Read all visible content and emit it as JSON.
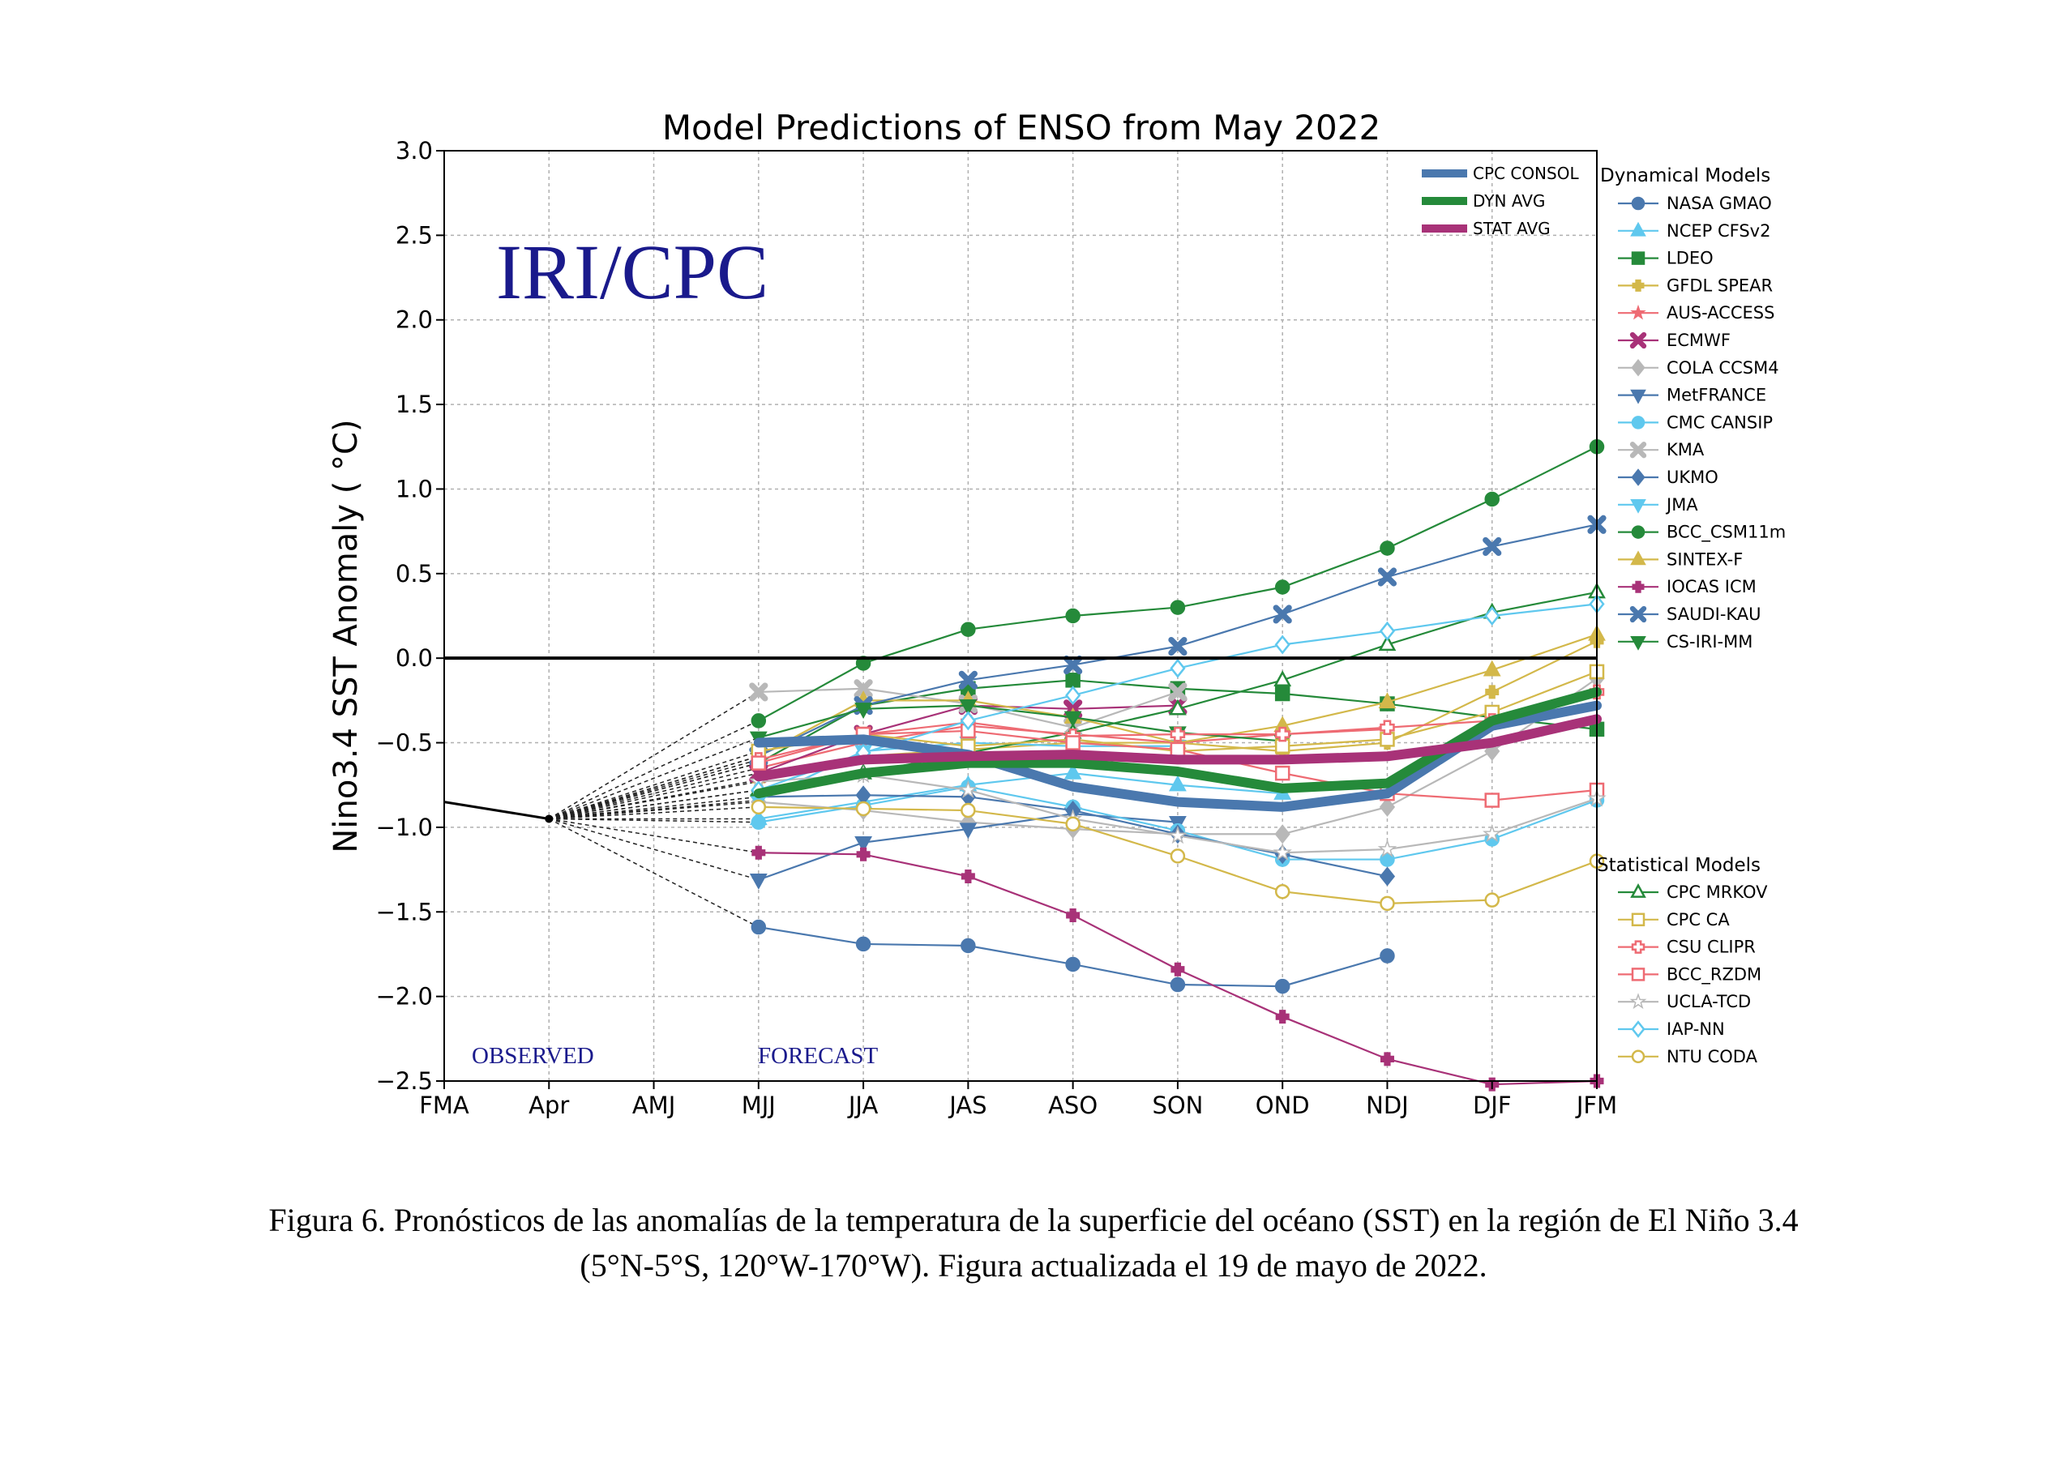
{
  "chart_data": {
    "type": "line",
    "title": "Model Predictions of ENSO from May 2022",
    "ylabel": "Nino3.4 SST Anomaly ( °C)",
    "xlabel": "",
    "categories": [
      "FMA",
      "Apr",
      "AMJ",
      "MJJ",
      "JJA",
      "JAS",
      "ASO",
      "SON",
      "OND",
      "NDJ",
      "DJF",
      "JFM"
    ],
    "ylim": [
      -2.5,
      3.0
    ],
    "yticks": [
      "3.0",
      "2.5",
      "2.0",
      "1.5",
      "1.0",
      "0.5",
      "0.0",
      "−0.5",
      "−1.0",
      "−1.5",
      "−2.0",
      "−2.5"
    ],
    "grid": true,
    "observed": {
      "x": [
        "FMA",
        "Apr"
      ],
      "values": [
        -0.85,
        -0.95
      ]
    },
    "watermark": "IRI/CPC",
    "observed_label": "OBSERVED",
    "forecast_label": "FORECAST",
    "averages_legend": [
      {
        "name": "CPC CONSOL",
        "color": "#4a78ae"
      },
      {
        "name": "DYN AVG",
        "color": "#258a3a"
      },
      {
        "name": "STAT AVG",
        "color": "#a83278"
      }
    ],
    "averages": [
      {
        "name": "CPC CONSOL",
        "color": "#4a78ae",
        "width": 12,
        "values": [
          null,
          null,
          null,
          -0.5,
          -0.48,
          -0.57,
          -0.76,
          -0.85,
          -0.88,
          -0.8,
          -0.4,
          -0.28
        ]
      },
      {
        "name": "DYN AVG",
        "color": "#258a3a",
        "width": 12,
        "values": [
          null,
          null,
          null,
          -0.8,
          -0.68,
          -0.62,
          -0.62,
          -0.67,
          -0.77,
          -0.74,
          -0.37,
          -0.2
        ]
      },
      {
        "name": "STAT AVG",
        "color": "#a83278",
        "width": 12,
        "values": [
          null,
          null,
          null,
          -0.7,
          -0.6,
          -0.58,
          -0.57,
          -0.6,
          -0.6,
          -0.58,
          -0.5,
          -0.36
        ]
      }
    ],
    "dyn_title": "Dynamical Models",
    "stat_title": "Statistical Models",
    "dynamical": [
      {
        "name": "NASA GMAO",
        "color": "#4a78ae",
        "marker": "circle",
        "values": [
          null,
          null,
          null,
          -1.59,
          -1.69,
          -1.7,
          -1.81,
          -1.93,
          -1.94,
          -1.76,
          null,
          null
        ]
      },
      {
        "name": "NCEP CFSv2",
        "color": "#5fc8ee",
        "marker": "triangle-up",
        "values": [
          null,
          null,
          null,
          -0.95,
          -0.85,
          -0.75,
          -0.68,
          -0.75,
          -0.8,
          null,
          null,
          null
        ]
      },
      {
        "name": "LDEO",
        "color": "#258a3a",
        "marker": "square",
        "values": [
          null,
          null,
          null,
          -0.62,
          -0.28,
          -0.18,
          -0.13,
          -0.18,
          -0.21,
          -0.27,
          -0.35,
          -0.42
        ]
      },
      {
        "name": "GFDL SPEAR",
        "color": "#d3b84a",
        "marker": "plus",
        "values": [
          null,
          null,
          null,
          -0.72,
          -0.58,
          -0.54,
          -0.5,
          -0.5,
          -0.55,
          -0.5,
          -0.2,
          0.1
        ]
      },
      {
        "name": "AUS-ACCESS",
        "color": "#ee6b73",
        "marker": "star",
        "values": [
          null,
          null,
          null,
          -0.65,
          -0.5,
          -0.4,
          -0.45,
          -0.5,
          -0.45,
          -0.42,
          null,
          null
        ]
      },
      {
        "name": "ECMWF",
        "color": "#a83278",
        "marker": "x",
        "values": [
          null,
          null,
          null,
          -0.68,
          -0.45,
          -0.28,
          -0.3,
          -0.28,
          null,
          null,
          null,
          null
        ]
      },
      {
        "name": "COLA CCSM4",
        "color": "#b8b8b8",
        "marker": "diamond",
        "values": [
          null,
          null,
          null,
          -0.85,
          -0.9,
          -0.97,
          -1.01,
          -1.04,
          -1.04,
          -0.88,
          -0.55,
          -0.12
        ]
      },
      {
        "name": "MetFRANCE",
        "color": "#4a78ae",
        "marker": "triangle-down",
        "values": [
          null,
          null,
          null,
          -1.31,
          -1.09,
          -1.01,
          -0.92,
          -0.97,
          null,
          null,
          null,
          null
        ]
      },
      {
        "name": "CMC CANSIP",
        "color": "#5fc8ee",
        "marker": "circle",
        "values": [
          null,
          null,
          null,
          -0.97,
          -0.87,
          -0.76,
          -0.88,
          -1.02,
          -1.19,
          -1.19,
          -1.07,
          -0.84
        ]
      },
      {
        "name": "KMA",
        "color": "#b8b8b8",
        "marker": "x",
        "values": [
          null,
          null,
          null,
          -0.2,
          -0.18,
          -0.27,
          -0.41,
          -0.2,
          null,
          null,
          null,
          null
        ]
      },
      {
        "name": "UKMO",
        "color": "#4a78ae",
        "marker": "diamond",
        "values": [
          null,
          null,
          null,
          -0.82,
          -0.81,
          -0.82,
          -0.9,
          -1.04,
          -1.16,
          -1.29,
          null,
          null
        ]
      },
      {
        "name": "JMA",
        "color": "#5fc8ee",
        "marker": "triangle-down",
        "values": [
          null,
          null,
          null,
          -0.84,
          -0.55,
          -0.5,
          -0.52,
          -0.52,
          null,
          null,
          null,
          null
        ]
      },
      {
        "name": "BCC_CSM11m",
        "color": "#258a3a",
        "marker": "circle",
        "values": [
          null,
          null,
          null,
          -0.37,
          -0.03,
          0.17,
          0.25,
          0.3,
          0.42,
          0.65,
          0.94,
          1.25
        ]
      },
      {
        "name": "SINTEX-F",
        "color": "#d3b84a",
        "marker": "triangle-up",
        "values": [
          null,
          null,
          null,
          -0.58,
          -0.25,
          -0.25,
          -0.35,
          -0.5,
          -0.4,
          -0.26,
          -0.07,
          0.14
        ]
      },
      {
        "name": "IOCAS ICM",
        "color": "#a83278",
        "marker": "plus",
        "values": [
          null,
          null,
          null,
          -1.15,
          -1.16,
          -1.29,
          -1.52,
          -1.84,
          -2.12,
          -2.37,
          -2.52,
          -2.5
        ]
      },
      {
        "name": "SAUDI-KAU",
        "color": "#4a78ae",
        "marker": "x",
        "values": [
          null,
          null,
          null,
          -0.58,
          -0.28,
          -0.13,
          -0.04,
          0.07,
          0.26,
          0.48,
          0.66,
          0.79
        ]
      },
      {
        "name": "CS-IRI-MM",
        "color": "#258a3a",
        "marker": "triangle-down",
        "values": [
          null,
          null,
          null,
          -0.47,
          -0.3,
          -0.28,
          -0.35,
          -0.44,
          -0.49,
          null,
          null,
          null
        ]
      }
    ],
    "statistical": [
      {
        "name": "CPC MRKOV",
        "color": "#258a3a",
        "marker": "triangle-up-open",
        "values": [
          null,
          null,
          null,
          -0.78,
          -0.68,
          -0.56,
          -0.44,
          -0.3,
          -0.13,
          0.08,
          0.27,
          0.39
        ]
      },
      {
        "name": "CPC CA",
        "color": "#d3b84a",
        "marker": "square-open",
        "values": [
          null,
          null,
          null,
          -0.55,
          -0.45,
          -0.52,
          -0.48,
          -0.55,
          -0.52,
          -0.48,
          -0.32,
          -0.08
        ]
      },
      {
        "name": "CSU CLIPR",
        "color": "#ee6b73",
        "marker": "plus-open",
        "values": [
          null,
          null,
          null,
          -0.6,
          -0.45,
          -0.38,
          -0.46,
          -0.45,
          -0.45,
          -0.41,
          -0.37,
          -0.2
        ]
      },
      {
        "name": "BCC_RZDM",
        "color": "#ee6b73",
        "marker": "square-open",
        "values": [
          null,
          null,
          null,
          -0.62,
          -0.45,
          -0.43,
          -0.5,
          -0.54,
          -0.68,
          -0.8,
          -0.84,
          -0.78
        ]
      },
      {
        "name": "UCLA-TCD",
        "color": "#b8b8b8",
        "marker": "star-open",
        "values": [
          null,
          null,
          null,
          -0.73,
          -0.69,
          -0.78,
          -0.95,
          -1.05,
          -1.15,
          -1.13,
          -1.04,
          -0.83
        ]
      },
      {
        "name": "IAP-NN",
        "color": "#5fc8ee",
        "marker": "diamond-open",
        "values": [
          null,
          null,
          null,
          -0.78,
          -0.56,
          -0.37,
          -0.22,
          -0.06,
          0.08,
          0.16,
          0.25,
          0.32
        ]
      },
      {
        "name": "NTU CODA",
        "color": "#d3b84a",
        "marker": "circle-open",
        "values": [
          null,
          null,
          null,
          -0.88,
          -0.89,
          -0.9,
          -0.98,
          -1.17,
          -1.38,
          -1.45,
          -1.43,
          -1.2
        ]
      }
    ]
  },
  "caption": {
    "line1": "Figura 6. Pronósticos de las anomalías de la temperatura de la superficie del océano (SST) en la región de El Niño 3.4",
    "line2": "(5°N-5°S, 120°W-170°W). Figura actualizada el 19 de mayo de 2022."
  }
}
